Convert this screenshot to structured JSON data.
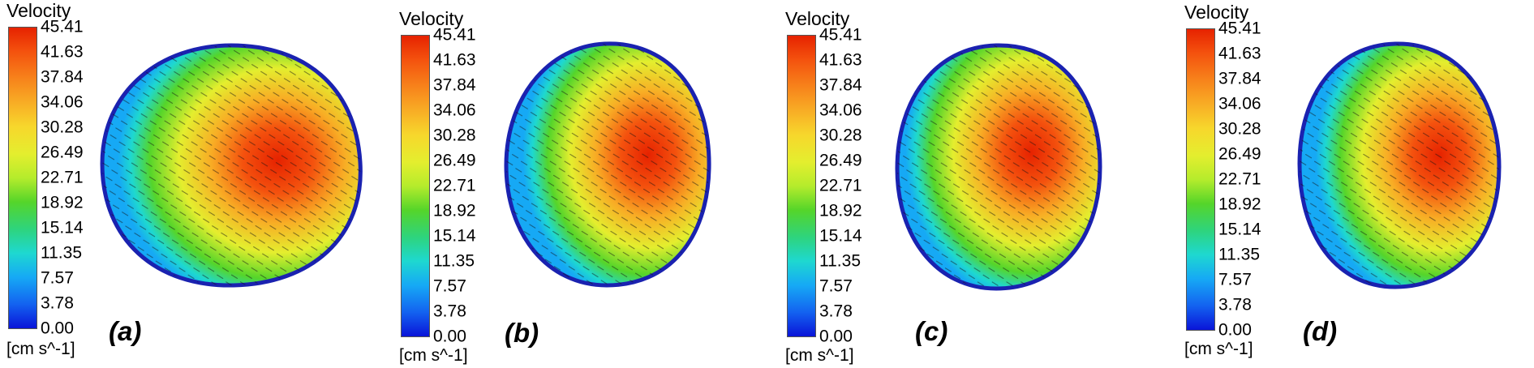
{
  "figure": {
    "panels": [
      {
        "id": "a",
        "legend_title": "Velocity",
        "unit": "[cm s^-1]",
        "label": "(a)"
      },
      {
        "id": "b",
        "legend_title": "Velocity",
        "unit": "[cm s^-1]",
        "label": "(b)"
      },
      {
        "id": "c",
        "legend_title": "Velocity",
        "unit": "[cm s^-1]",
        "label": "(c)"
      },
      {
        "id": "d",
        "legend_title": "Velocity",
        "unit": "[cm s^-1]",
        "label": "(d)"
      }
    ],
    "colorbar_ticks": [
      "45.41",
      "41.63",
      "37.84",
      "34.06",
      "30.28",
      "26.49",
      "22.71",
      "18.92",
      "15.14",
      "11.35",
      "7.57",
      "3.78",
      "0.00"
    ],
    "colors": {
      "max": "#e62200",
      "high": "#f7831b",
      "mid": "#f7d72c",
      "low_mid": "#55d52a",
      "low": "#1ed8d0",
      "min": "#0a14d8",
      "rim": "#1a22b0"
    }
  }
}
